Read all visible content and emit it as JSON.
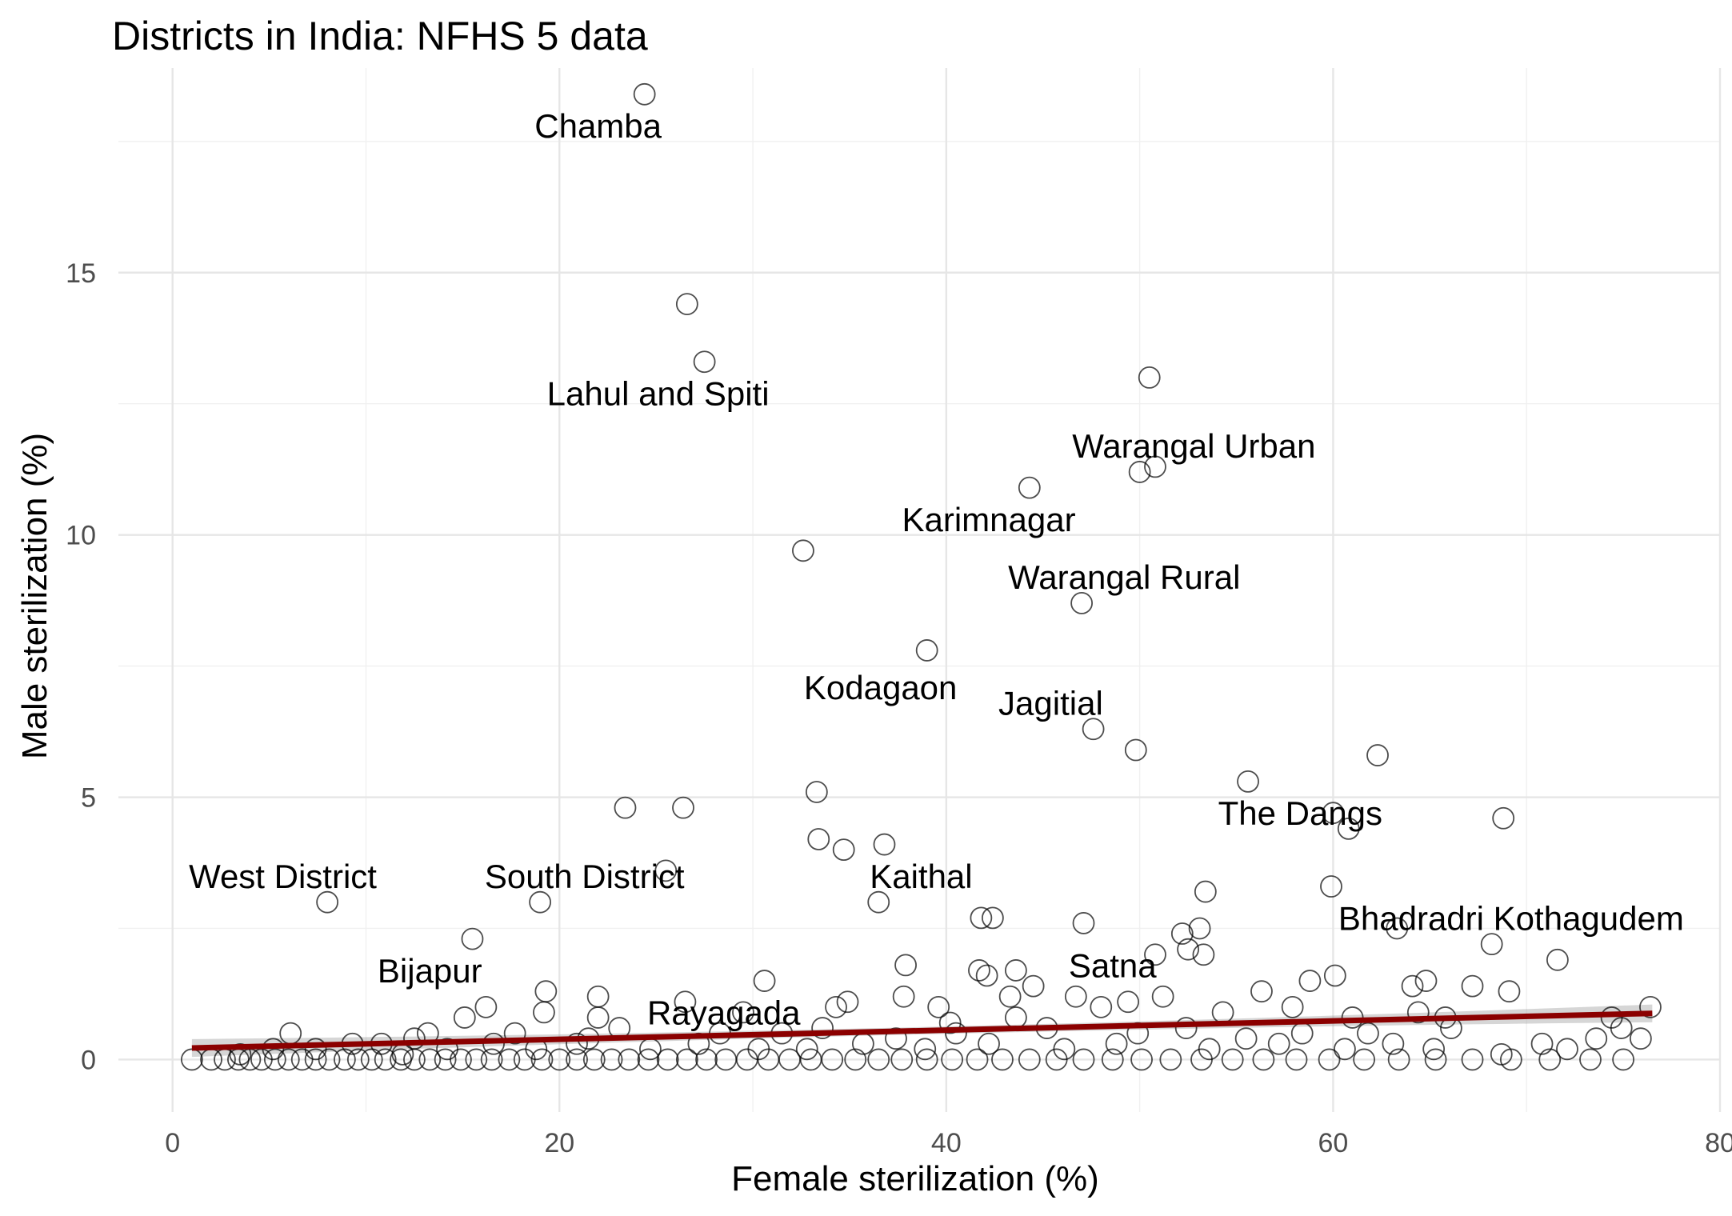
{
  "chart_data": {
    "type": "scatter",
    "title": "Districts in India: NFHS 5 data",
    "xlabel": "Female sterilization (%)",
    "ylabel": "Male sterilization (%)",
    "xlim": [
      -2.8,
      80
    ],
    "ylim": [
      -1,
      18.9
    ],
    "x_ticks": [
      0,
      20,
      40,
      60,
      80
    ],
    "y_ticks": [
      0,
      5,
      10,
      15
    ],
    "grid": true,
    "marker": "open-circle",
    "marker_color": "#000000",
    "fit_line": {
      "color": "#8b0000",
      "x": [
        1,
        76.5
      ],
      "y": [
        0.22,
        0.88
      ],
      "band_color": "#999999"
    },
    "labeled_points": [
      {
        "label": "Chamba",
        "x": 24.4,
        "y": 18.4,
        "label_x": 22,
        "label_y": 17.8
      },
      {
        "label": "Lahul and Spiti",
        "x": 27.5,
        "y": 13.3,
        "label_x": 25.1,
        "label_y": 12.7
      },
      {
        "label": "Warangal Urban",
        "x": 50.8,
        "y": 11.3,
        "label_x": 52.8,
        "label_y": 11.7
      },
      {
        "label": "Karimnagar",
        "x": 44.3,
        "y": 10.9,
        "label_x": 42.2,
        "label_y": 10.3
      },
      {
        "label": "Warangal Rural",
        "x": 47,
        "y": 8.7,
        "label_x": 49.2,
        "label_y": 9.2
      },
      {
        "label": "Kodagaon",
        "x": 39,
        "y": 7.8,
        "label_x": 36.6,
        "label_y": 7.1
      },
      {
        "label": "Jagitial",
        "x": 47.6,
        "y": 6.3,
        "label_x": 45.4,
        "label_y": 6.8
      },
      {
        "label": "The Dangs",
        "x": 60.8,
        "y": 4.4,
        "label_x": 58.3,
        "label_y": 4.7
      },
      {
        "label": "West District",
        "x": 8,
        "y": 3,
        "label_x": 5.7,
        "label_y": 3.5
      },
      {
        "label": "South District",
        "x": 19,
        "y": 3,
        "label_x": 21.3,
        "label_y": 3.5
      },
      {
        "label": "Kaithal",
        "x": 36.5,
        "y": 3,
        "label_x": 38.7,
        "label_y": 3.5
      },
      {
        "label": "Bhadradri Kothagudem",
        "x": 63.3,
        "y": 2.5,
        "label_x": 69.2,
        "label_y": 2.7
      },
      {
        "label": "Bijapur",
        "x": 15.5,
        "y": 2.3,
        "label_x": 13.3,
        "label_y": 1.7
      },
      {
        "label": "Satna",
        "x": 50.8,
        "y": 2,
        "label_x": 48.6,
        "label_y": 1.8
      },
      {
        "label": "Rayagada",
        "x": 31.5,
        "y": 0.5,
        "label_x": 28.5,
        "label_y": 0.9
      }
    ],
    "points": [
      [
        24.4,
        18.4
      ],
      [
        26.6,
        14.4
      ],
      [
        27.5,
        13.3
      ],
      [
        50.5,
        13
      ],
      [
        50.8,
        11.3
      ],
      [
        50,
        11.2
      ],
      [
        44.3,
        10.9
      ],
      [
        32.6,
        9.7
      ],
      [
        47,
        8.7
      ],
      [
        39,
        7.8
      ],
      [
        47.6,
        6.3
      ],
      [
        49.8,
        5.9
      ],
      [
        62.3,
        5.8
      ],
      [
        55.6,
        5.3
      ],
      [
        33.3,
        5.1
      ],
      [
        23.4,
        4.8
      ],
      [
        26.4,
        4.8
      ],
      [
        60,
        4.7
      ],
      [
        60.8,
        4.4
      ],
      [
        68.8,
        4.6
      ],
      [
        33.4,
        4.2
      ],
      [
        34.7,
        4
      ],
      [
        36.8,
        4.1
      ],
      [
        25.5,
        3.6
      ],
      [
        8,
        3
      ],
      [
        19,
        3
      ],
      [
        36.5,
        3
      ],
      [
        59.9,
        3.3
      ],
      [
        53.4,
        3.2
      ],
      [
        41.8,
        2.7
      ],
      [
        42.4,
        2.7
      ],
      [
        47.1,
        2.6
      ],
      [
        53.1,
        2.5
      ],
      [
        52.2,
        2.4
      ],
      [
        63.3,
        2.5
      ],
      [
        15.5,
        2.3
      ],
      [
        52.5,
        2.1
      ],
      [
        53.3,
        2
      ],
      [
        68.2,
        2.2
      ],
      [
        71.6,
        1.9
      ],
      [
        50.8,
        2
      ],
      [
        37.9,
        1.8
      ],
      [
        41.7,
        1.7
      ],
      [
        42.1,
        1.6
      ],
      [
        43.6,
        1.7
      ],
      [
        44.5,
        1.4
      ],
      [
        30.6,
        1.5
      ],
      [
        60.1,
        1.6
      ],
      [
        64.1,
        1.4
      ],
      [
        64.8,
        1.5
      ],
      [
        67.2,
        1.4
      ],
      [
        58.8,
        1.5
      ],
      [
        56.3,
        1.3
      ],
      [
        69.1,
        1.3
      ],
      [
        19.3,
        1.3
      ],
      [
        22,
        1.2
      ],
      [
        26.5,
        1.1
      ],
      [
        34.9,
        1.1
      ],
      [
        37.8,
        1.2
      ],
      [
        43.3,
        1.2
      ],
      [
        46.7,
        1.2
      ],
      [
        49.4,
        1.1
      ],
      [
        51.2,
        1.2
      ],
      [
        16.2,
        1
      ],
      [
        19.2,
        0.9
      ],
      [
        29.5,
        0.9
      ],
      [
        34.3,
        1
      ],
      [
        39.6,
        1
      ],
      [
        48,
        1
      ],
      [
        57.9,
        1
      ],
      [
        64.4,
        0.9
      ],
      [
        76.4,
        1
      ],
      [
        15.1,
        0.8
      ],
      [
        22,
        0.8
      ],
      [
        40.2,
        0.7
      ],
      [
        43.6,
        0.8
      ],
      [
        54.3,
        0.9
      ],
      [
        61,
        0.8
      ],
      [
        65.8,
        0.8
      ],
      [
        74.4,
        0.8
      ],
      [
        6.1,
        0.5
      ],
      [
        10.8,
        0.3
      ],
      [
        12.5,
        0.4
      ],
      [
        13.2,
        0.5
      ],
      [
        17.7,
        0.5
      ],
      [
        21.5,
        0.4
      ],
      [
        23.1,
        0.6
      ],
      [
        28.3,
        0.5
      ],
      [
        31.5,
        0.5
      ],
      [
        33.6,
        0.6
      ],
      [
        37.4,
        0.4
      ],
      [
        40.5,
        0.5
      ],
      [
        45.2,
        0.6
      ],
      [
        49.9,
        0.5
      ],
      [
        52.4,
        0.6
      ],
      [
        55.5,
        0.4
      ],
      [
        58.4,
        0.5
      ],
      [
        61.8,
        0.5
      ],
      [
        66.1,
        0.6
      ],
      [
        70.8,
        0.3
      ],
      [
        73.6,
        0.4
      ],
      [
        75.9,
        0.4
      ],
      [
        3.5,
        0.1
      ],
      [
        5.2,
        0.2
      ],
      [
        7.4,
        0.2
      ],
      [
        9.3,
        0.3
      ],
      [
        11.9,
        0.1
      ],
      [
        14.2,
        0.2
      ],
      [
        16.6,
        0.3
      ],
      [
        18.8,
        0.2
      ],
      [
        20.9,
        0.3
      ],
      [
        24.7,
        0.2
      ],
      [
        27.2,
        0.3
      ],
      [
        30.3,
        0.2
      ],
      [
        32.8,
        0.2
      ],
      [
        35.7,
        0.3
      ],
      [
        38.9,
        0.2
      ],
      [
        42.2,
        0.3
      ],
      [
        46.1,
        0.2
      ],
      [
        48.8,
        0.3
      ],
      [
        53.6,
        0.2
      ],
      [
        57.2,
        0.3
      ],
      [
        60.6,
        0.2
      ],
      [
        63.1,
        0.3
      ],
      [
        65.2,
        0.2
      ],
      [
        68.7,
        0.1
      ],
      [
        72.1,
        0.2
      ],
      [
        74.9,
        0.6
      ],
      [
        1,
        0
      ],
      [
        2,
        0
      ],
      [
        2.7,
        0
      ],
      [
        3.4,
        0
      ],
      [
        4,
        0
      ],
      [
        4.6,
        0
      ],
      [
        5.3,
        0
      ],
      [
        6,
        0
      ],
      [
        6.7,
        0
      ],
      [
        7.4,
        0
      ],
      [
        8.1,
        0
      ],
      [
        8.9,
        0
      ],
      [
        9.6,
        0
      ],
      [
        10.3,
        0
      ],
      [
        11,
        0
      ],
      [
        11.8,
        0
      ],
      [
        12.5,
        0
      ],
      [
        13.3,
        0
      ],
      [
        14.1,
        0
      ],
      [
        14.9,
        0
      ],
      [
        15.7,
        0
      ],
      [
        16.5,
        0
      ],
      [
        17.4,
        0
      ],
      [
        18.2,
        0
      ],
      [
        19.1,
        0
      ],
      [
        20,
        0
      ],
      [
        20.9,
        0
      ],
      [
        21.8,
        0
      ],
      [
        22.7,
        0
      ],
      [
        23.6,
        0
      ],
      [
        24.6,
        0
      ],
      [
        25.6,
        0
      ],
      [
        26.6,
        0
      ],
      [
        27.6,
        0
      ],
      [
        28.6,
        0
      ],
      [
        29.7,
        0
      ],
      [
        30.8,
        0
      ],
      [
        31.9,
        0
      ],
      [
        33,
        0
      ],
      [
        34.1,
        0
      ],
      [
        35.3,
        0
      ],
      [
        36.5,
        0
      ],
      [
        37.7,
        0
      ],
      [
        39,
        0
      ],
      [
        40.3,
        0
      ],
      [
        41.6,
        0
      ],
      [
        42.9,
        0
      ],
      [
        44.3,
        0
      ],
      [
        45.7,
        0
      ],
      [
        47.1,
        0
      ],
      [
        48.6,
        0
      ],
      [
        50.1,
        0
      ],
      [
        51.6,
        0
      ],
      [
        53.2,
        0
      ],
      [
        54.8,
        0
      ],
      [
        56.4,
        0
      ],
      [
        58.1,
        0
      ],
      [
        59.8,
        0
      ],
      [
        61.6,
        0
      ],
      [
        63.4,
        0
      ],
      [
        65.3,
        0
      ],
      [
        67.2,
        0
      ],
      [
        69.2,
        0
      ],
      [
        71.2,
        0
      ],
      [
        73.3,
        0
      ],
      [
        75,
        0
      ]
    ]
  }
}
